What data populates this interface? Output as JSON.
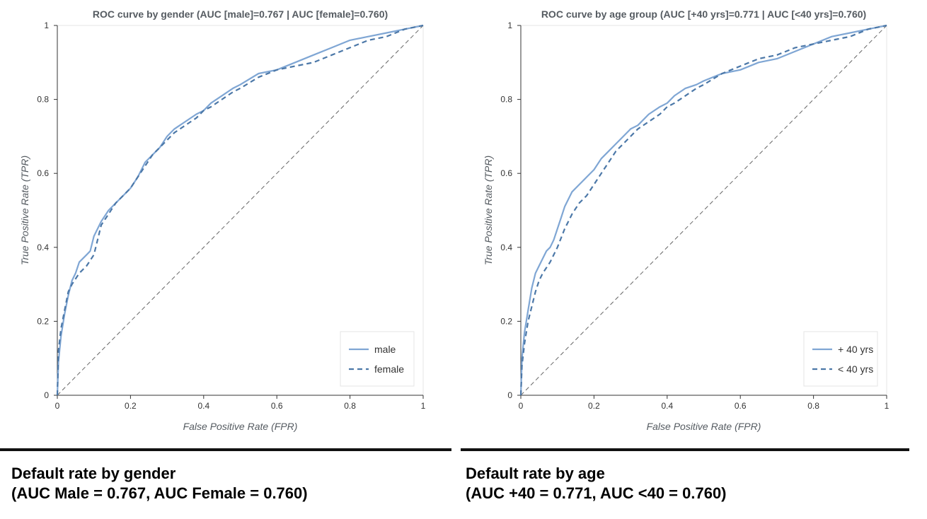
{
  "chart_data": [
    {
      "type": "line",
      "title": "ROC curve by gender (AUC [male]=0.767 | AUC [female]=0.760)",
      "xlabel": "False Positive Rate (FPR)",
      "ylabel": "True Positive Rate (TPR)",
      "xlim": [
        0,
        1
      ],
      "ylim": [
        0,
        1
      ],
      "xticks": [
        "0",
        "0.2",
        "0.4",
        "0.6",
        "0.8",
        "1"
      ],
      "yticks": [
        "0",
        "0.2",
        "0.4",
        "0.6",
        "0.8",
        "1"
      ],
      "grid": false,
      "legend_position": "bottom-right",
      "series": [
        {
          "name": "male",
          "color": "#7fa6d4",
          "style": "solid",
          "points": [
            [
              0,
              0
            ],
            [
              0.003,
              0.09
            ],
            [
              0.01,
              0.16
            ],
            [
              0.02,
              0.22
            ],
            [
              0.03,
              0.27
            ],
            [
              0.04,
              0.31
            ],
            [
              0.05,
              0.33
            ],
            [
              0.06,
              0.36
            ],
            [
              0.08,
              0.38
            ],
            [
              0.09,
              0.39
            ],
            [
              0.1,
              0.43
            ],
            [
              0.12,
              0.47
            ],
            [
              0.14,
              0.5
            ],
            [
              0.16,
              0.52
            ],
            [
              0.18,
              0.54
            ],
            [
              0.2,
              0.56
            ],
            [
              0.22,
              0.59
            ],
            [
              0.24,
              0.63
            ],
            [
              0.26,
              0.65
            ],
            [
              0.28,
              0.67
            ],
            [
              0.3,
              0.7
            ],
            [
              0.32,
              0.72
            ],
            [
              0.35,
              0.74
            ],
            [
              0.38,
              0.76
            ],
            [
              0.4,
              0.77
            ],
            [
              0.42,
              0.79
            ],
            [
              0.45,
              0.81
            ],
            [
              0.48,
              0.83
            ],
            [
              0.5,
              0.84
            ],
            [
              0.55,
              0.87
            ],
            [
              0.6,
              0.88
            ],
            [
              0.65,
              0.9
            ],
            [
              0.7,
              0.92
            ],
            [
              0.75,
              0.94
            ],
            [
              0.8,
              0.96
            ],
            [
              0.85,
              0.97
            ],
            [
              0.9,
              0.98
            ],
            [
              0.95,
              0.99
            ],
            [
              1,
              1
            ]
          ]
        },
        {
          "name": "female",
          "color": "#4c78a8",
          "style": "dashed",
          "points": [
            [
              0,
              0
            ],
            [
              0.003,
              0.12
            ],
            [
              0.01,
              0.18
            ],
            [
              0.02,
              0.23
            ],
            [
              0.03,
              0.28
            ],
            [
              0.04,
              0.3
            ],
            [
              0.06,
              0.33
            ],
            [
              0.08,
              0.35
            ],
            [
              0.1,
              0.38
            ],
            [
              0.11,
              0.42
            ],
            [
              0.12,
              0.46
            ],
            [
              0.14,
              0.49
            ],
            [
              0.16,
              0.52
            ],
            [
              0.18,
              0.54
            ],
            [
              0.2,
              0.56
            ],
            [
              0.22,
              0.59
            ],
            [
              0.24,
              0.62
            ],
            [
              0.26,
              0.65
            ],
            [
              0.28,
              0.67
            ],
            [
              0.3,
              0.69
            ],
            [
              0.32,
              0.71
            ],
            [
              0.35,
              0.73
            ],
            [
              0.38,
              0.75
            ],
            [
              0.4,
              0.77
            ],
            [
              0.42,
              0.78
            ],
            [
              0.45,
              0.8
            ],
            [
              0.48,
              0.82
            ],
            [
              0.5,
              0.83
            ],
            [
              0.55,
              0.86
            ],
            [
              0.6,
              0.88
            ],
            [
              0.65,
              0.89
            ],
            [
              0.7,
              0.9
            ],
            [
              0.75,
              0.92
            ],
            [
              0.8,
              0.94
            ],
            [
              0.85,
              0.96
            ],
            [
              0.9,
              0.97
            ],
            [
              0.95,
              0.99
            ],
            [
              1,
              1
            ]
          ]
        }
      ],
      "reference_line": {
        "from": [
          0,
          0
        ],
        "to": [
          1,
          1
        ],
        "style": "dashed",
        "color": "#666666"
      }
    },
    {
      "type": "line",
      "title": "ROC curve by age group (AUC [+40 yrs]=0.771 | AUC [<40 yrs]=0.760)",
      "xlabel": "False Positive Rate (FPR)",
      "ylabel": "True Positive Rate (TPR)",
      "xlim": [
        0,
        1
      ],
      "ylim": [
        0,
        1
      ],
      "xticks": [
        "0",
        "0.2",
        "0.4",
        "0.6",
        "0.8",
        "1"
      ],
      "yticks": [
        "0",
        "0.2",
        "0.4",
        "0.6",
        "0.8",
        "1"
      ],
      "grid": false,
      "legend_position": "bottom-right",
      "series": [
        {
          "name": "+ 40 yrs",
          "color": "#7fa6d4",
          "style": "solid",
          "points": [
            [
              0,
              0
            ],
            [
              0.003,
              0.1
            ],
            [
              0.01,
              0.17
            ],
            [
              0.02,
              0.23
            ],
            [
              0.03,
              0.29
            ],
            [
              0.04,
              0.33
            ],
            [
              0.05,
              0.35
            ],
            [
              0.06,
              0.37
            ],
            [
              0.07,
              0.39
            ],
            [
              0.08,
              0.4
            ],
            [
              0.09,
              0.42
            ],
            [
              0.1,
              0.45
            ],
            [
              0.11,
              0.48
            ],
            [
              0.12,
              0.51
            ],
            [
              0.13,
              0.53
            ],
            [
              0.14,
              0.55
            ],
            [
              0.16,
              0.57
            ],
            [
              0.18,
              0.59
            ],
            [
              0.2,
              0.61
            ],
            [
              0.22,
              0.64
            ],
            [
              0.24,
              0.66
            ],
            [
              0.26,
              0.68
            ],
            [
              0.28,
              0.7
            ],
            [
              0.3,
              0.72
            ],
            [
              0.32,
              0.73
            ],
            [
              0.35,
              0.76
            ],
            [
              0.38,
              0.78
            ],
            [
              0.4,
              0.79
            ],
            [
              0.42,
              0.81
            ],
            [
              0.45,
              0.83
            ],
            [
              0.48,
              0.84
            ],
            [
              0.5,
              0.85
            ],
            [
              0.55,
              0.87
            ],
            [
              0.6,
              0.88
            ],
            [
              0.65,
              0.9
            ],
            [
              0.7,
              0.91
            ],
            [
              0.75,
              0.93
            ],
            [
              0.8,
              0.95
            ],
            [
              0.85,
              0.97
            ],
            [
              0.9,
              0.98
            ],
            [
              0.95,
              0.99
            ],
            [
              1,
              1
            ]
          ]
        },
        {
          "name": "< 40 yrs",
          "color": "#4c78a8",
          "style": "dashed",
          "points": [
            [
              0,
              0
            ],
            [
              0.003,
              0.08
            ],
            [
              0.01,
              0.14
            ],
            [
              0.02,
              0.2
            ],
            [
              0.03,
              0.24
            ],
            [
              0.04,
              0.28
            ],
            [
              0.05,
              0.31
            ],
            [
              0.06,
              0.33
            ],
            [
              0.08,
              0.36
            ],
            [
              0.1,
              0.4
            ],
            [
              0.12,
              0.45
            ],
            [
              0.14,
              0.49
            ],
            [
              0.16,
              0.52
            ],
            [
              0.18,
              0.54
            ],
            [
              0.2,
              0.57
            ],
            [
              0.22,
              0.6
            ],
            [
              0.24,
              0.63
            ],
            [
              0.26,
              0.66
            ],
            [
              0.28,
              0.68
            ],
            [
              0.3,
              0.7
            ],
            [
              0.32,
              0.72
            ],
            [
              0.35,
              0.74
            ],
            [
              0.38,
              0.76
            ],
            [
              0.4,
              0.78
            ],
            [
              0.42,
              0.79
            ],
            [
              0.45,
              0.81
            ],
            [
              0.48,
              0.83
            ],
            [
              0.5,
              0.84
            ],
            [
              0.55,
              0.87
            ],
            [
              0.6,
              0.89
            ],
            [
              0.65,
              0.91
            ],
            [
              0.7,
              0.92
            ],
            [
              0.75,
              0.94
            ],
            [
              0.8,
              0.95
            ],
            [
              0.85,
              0.96
            ],
            [
              0.9,
              0.97
            ],
            [
              0.95,
              0.99
            ],
            [
              1,
              1
            ]
          ]
        }
      ],
      "reference_line": {
        "from": [
          0,
          0
        ],
        "to": [
          1,
          1
        ],
        "style": "dashed",
        "color": "#666666"
      }
    }
  ],
  "captions": {
    "left": {
      "line1": "Default rate by gender",
      "line2": "(AUC Male = 0.767, AUC Female = 0.760)"
    },
    "right": {
      "line1": "Default rate by age",
      "line2": "(AUC +40 = 0.771, AUC <40 = 0.760)"
    }
  }
}
